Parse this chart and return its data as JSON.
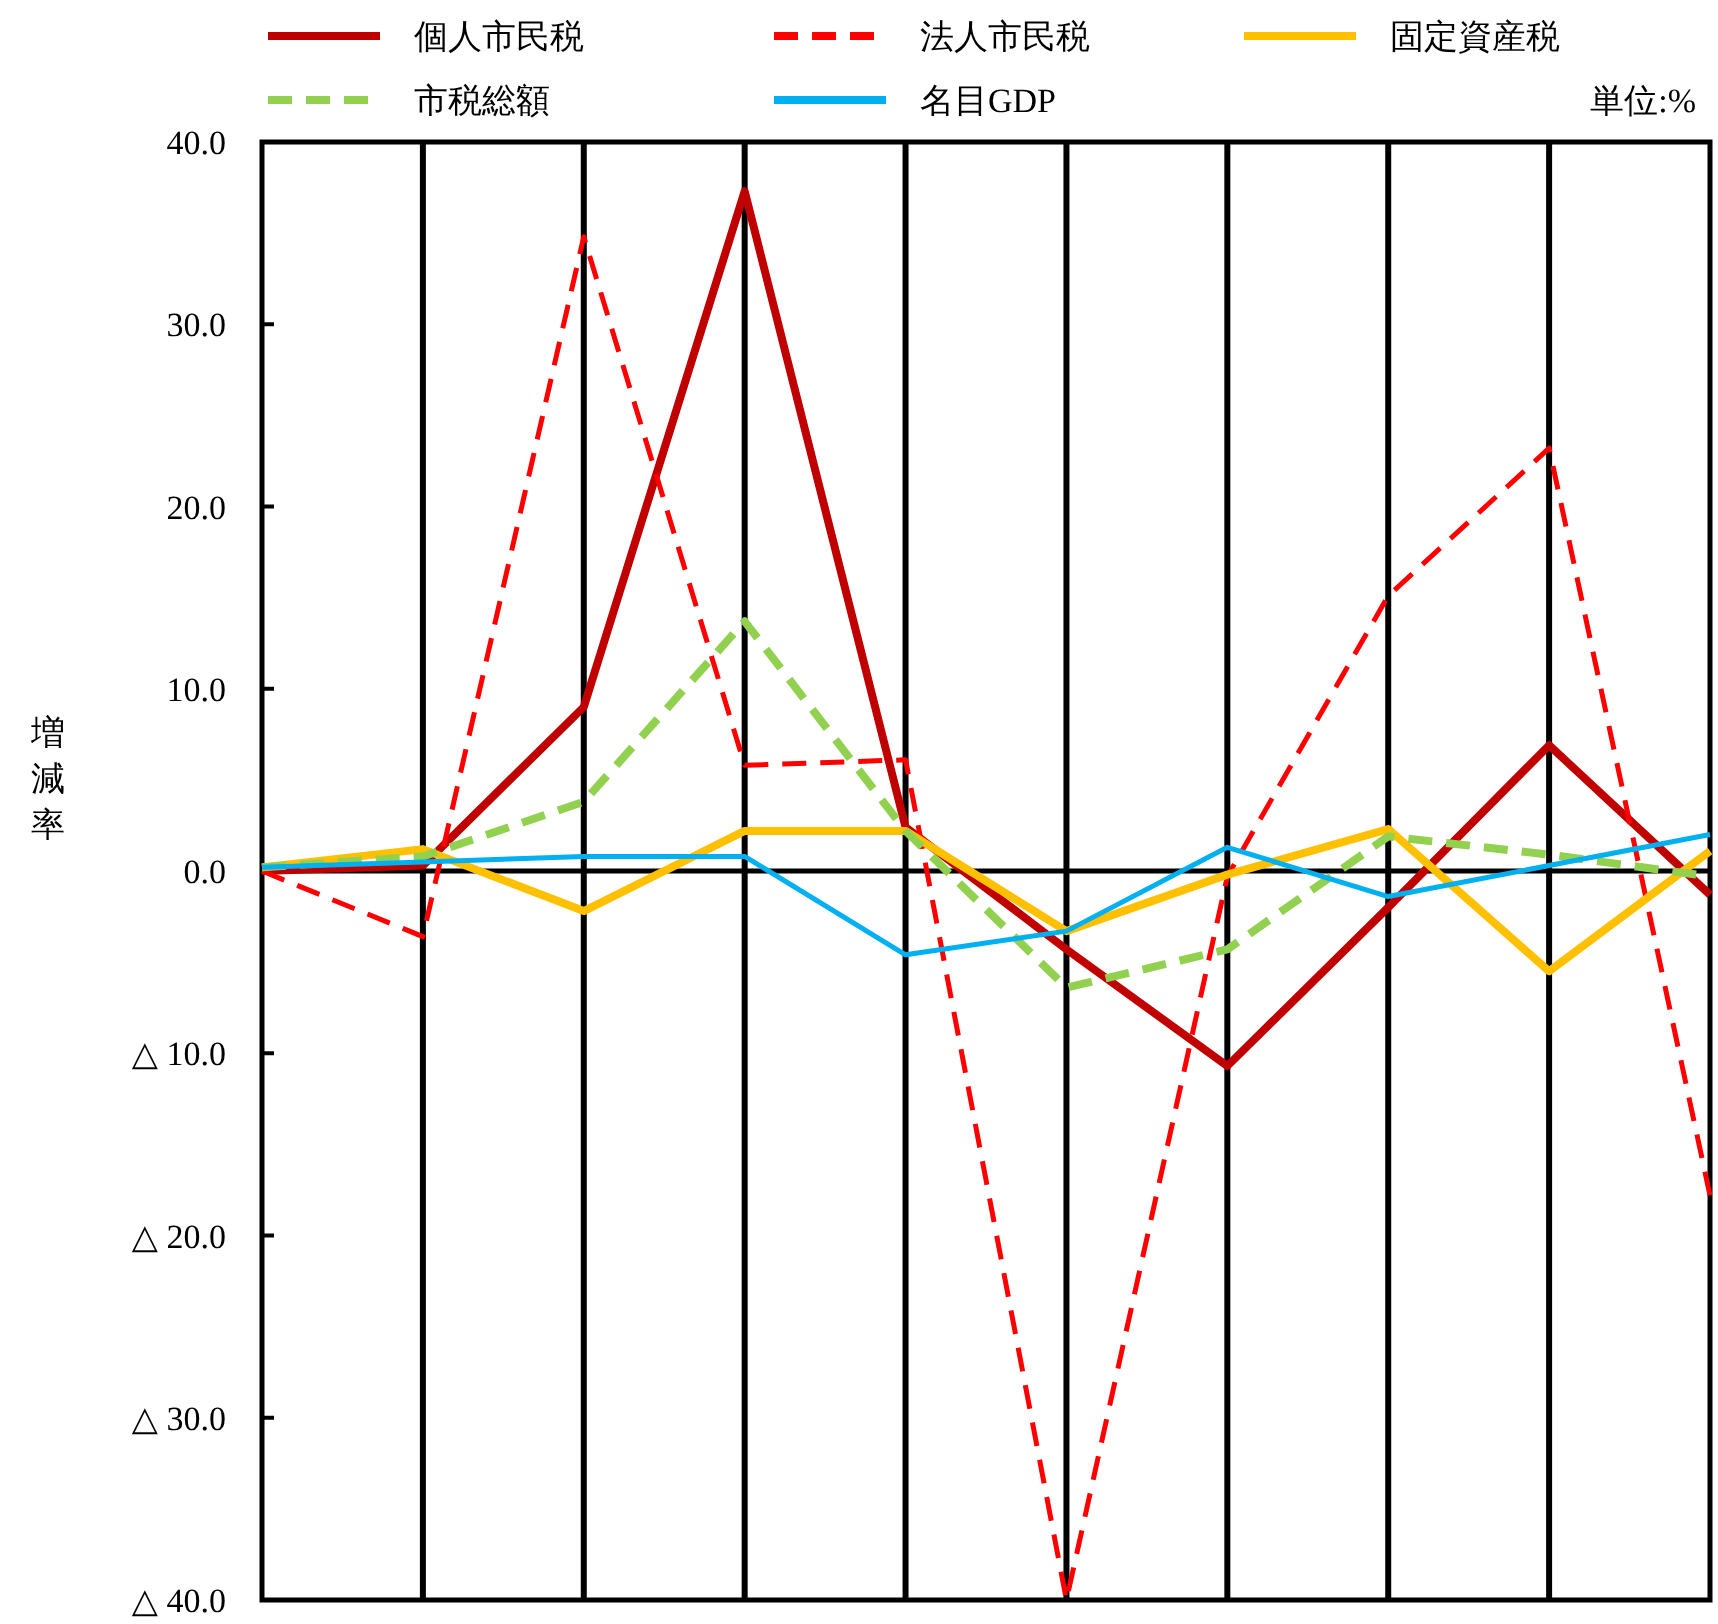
{
  "chart_data": {
    "type": "line",
    "ylabel": "増減率",
    "annotations": [
      "単位:%"
    ],
    "categories": [
      null,
      null,
      null,
      null,
      null,
      null,
      null,
      null,
      null,
      null
    ],
    "series": [
      {
        "name": "個人市民税",
        "color": "#c00000",
        "line_style": "solid",
        "values": [
          0,
          0.3,
          9.0,
          37.3,
          2.4,
          -4.3,
          -10.7,
          -2.0,
          6.9,
          -1.3
        ]
      },
      {
        "name": "法人市民税",
        "color": "#ff0000",
        "line_style": "dashed",
        "values": [
          0,
          -3.6,
          34.8,
          5.8,
          6.1,
          -40.0,
          -0.3,
          15.1,
          23.2,
          -17.8
        ]
      },
      {
        "name": "固定資産税",
        "color": "#ffc000",
        "line_style": "solid",
        "values": [
          0.2,
          1.2,
          -2.2,
          2.2,
          2.2,
          -3.3,
          -0.2,
          2.3,
          -5.5,
          1.1
        ]
      },
      {
        "name": "市税総額",
        "color": "#92d050",
        "line_style": "dashed",
        "values": [
          0.2,
          0.8,
          3.8,
          13.7,
          2.2,
          -6.4,
          -4.3,
          1.9,
          0.9,
          -0.3
        ]
      },
      {
        "name": "名目GDP",
        "color": "#00b0f0",
        "line_style": "solid",
        "values": [
          0.2,
          0.5,
          0.8,
          0.8,
          -4.6,
          -3.3,
          1.3,
          -1.4,
          0.3,
          2.0
        ]
      }
    ],
    "ylim": [
      -40,
      40
    ],
    "yticks": [
      {
        "value": -40,
        "label": "△ 40.0"
      },
      {
        "value": -30,
        "label": "△ 30.0"
      },
      {
        "value": -20,
        "label": "△ 20.0"
      },
      {
        "value": -10,
        "label": "△ 10.0"
      },
      {
        "value": 0,
        "label": "0.0"
      },
      {
        "value": 10,
        "label": "10.0"
      },
      {
        "value": 20,
        "label": "20.0"
      },
      {
        "value": 30,
        "label": "30.0"
      },
      {
        "value": 40,
        "label": "40.0"
      }
    ],
    "grid": "x",
    "legend": "top",
    "marker": "none"
  }
}
